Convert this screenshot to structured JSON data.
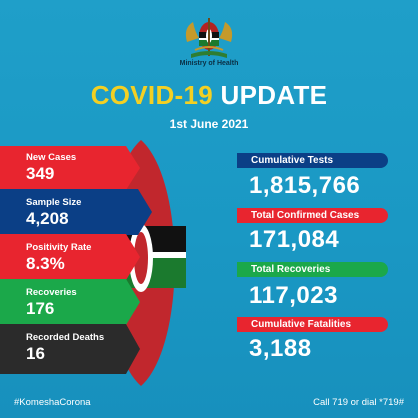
{
  "header": {
    "ministry": "Ministry of Health",
    "title_part1": "COVID-19",
    "title_part2": "UPDATE",
    "date": "1st June 2021"
  },
  "left_stats": [
    {
      "label": "New Cases",
      "value": "349",
      "color": "#e8252f"
    },
    {
      "label": "Sample Size",
      "value": "4,208",
      "color": "#0b3f86"
    },
    {
      "label": "Positivity Rate",
      "value": "8.3%",
      "color": "#e8252f"
    },
    {
      "label": "Recoveries",
      "value": "176",
      "color": "#1ba84a"
    },
    {
      "label": "Recorded Deaths",
      "value": "16",
      "color": "#2b2b2b"
    }
  ],
  "right_stats": [
    {
      "label": "Cumulative Tests",
      "value": "1,815,766",
      "color": "#0b3f86"
    },
    {
      "label": "Total Confirmed Cases",
      "value": "171,084",
      "color": "#e8252f"
    },
    {
      "label": "Total Recoveries",
      "value": "117,023",
      "color": "#1ba84a"
    },
    {
      "label": "Cumulative Fatalities",
      "value": "3,188",
      "color": "#e8252f"
    }
  ],
  "footer": {
    "hashtag": "#KomeshaCorona",
    "call": "Call 719 or dial *719#"
  },
  "icons": {
    "coat_of_arms": "kenya-coat-of-arms-icon",
    "shield": "maasai-shield-icon"
  }
}
